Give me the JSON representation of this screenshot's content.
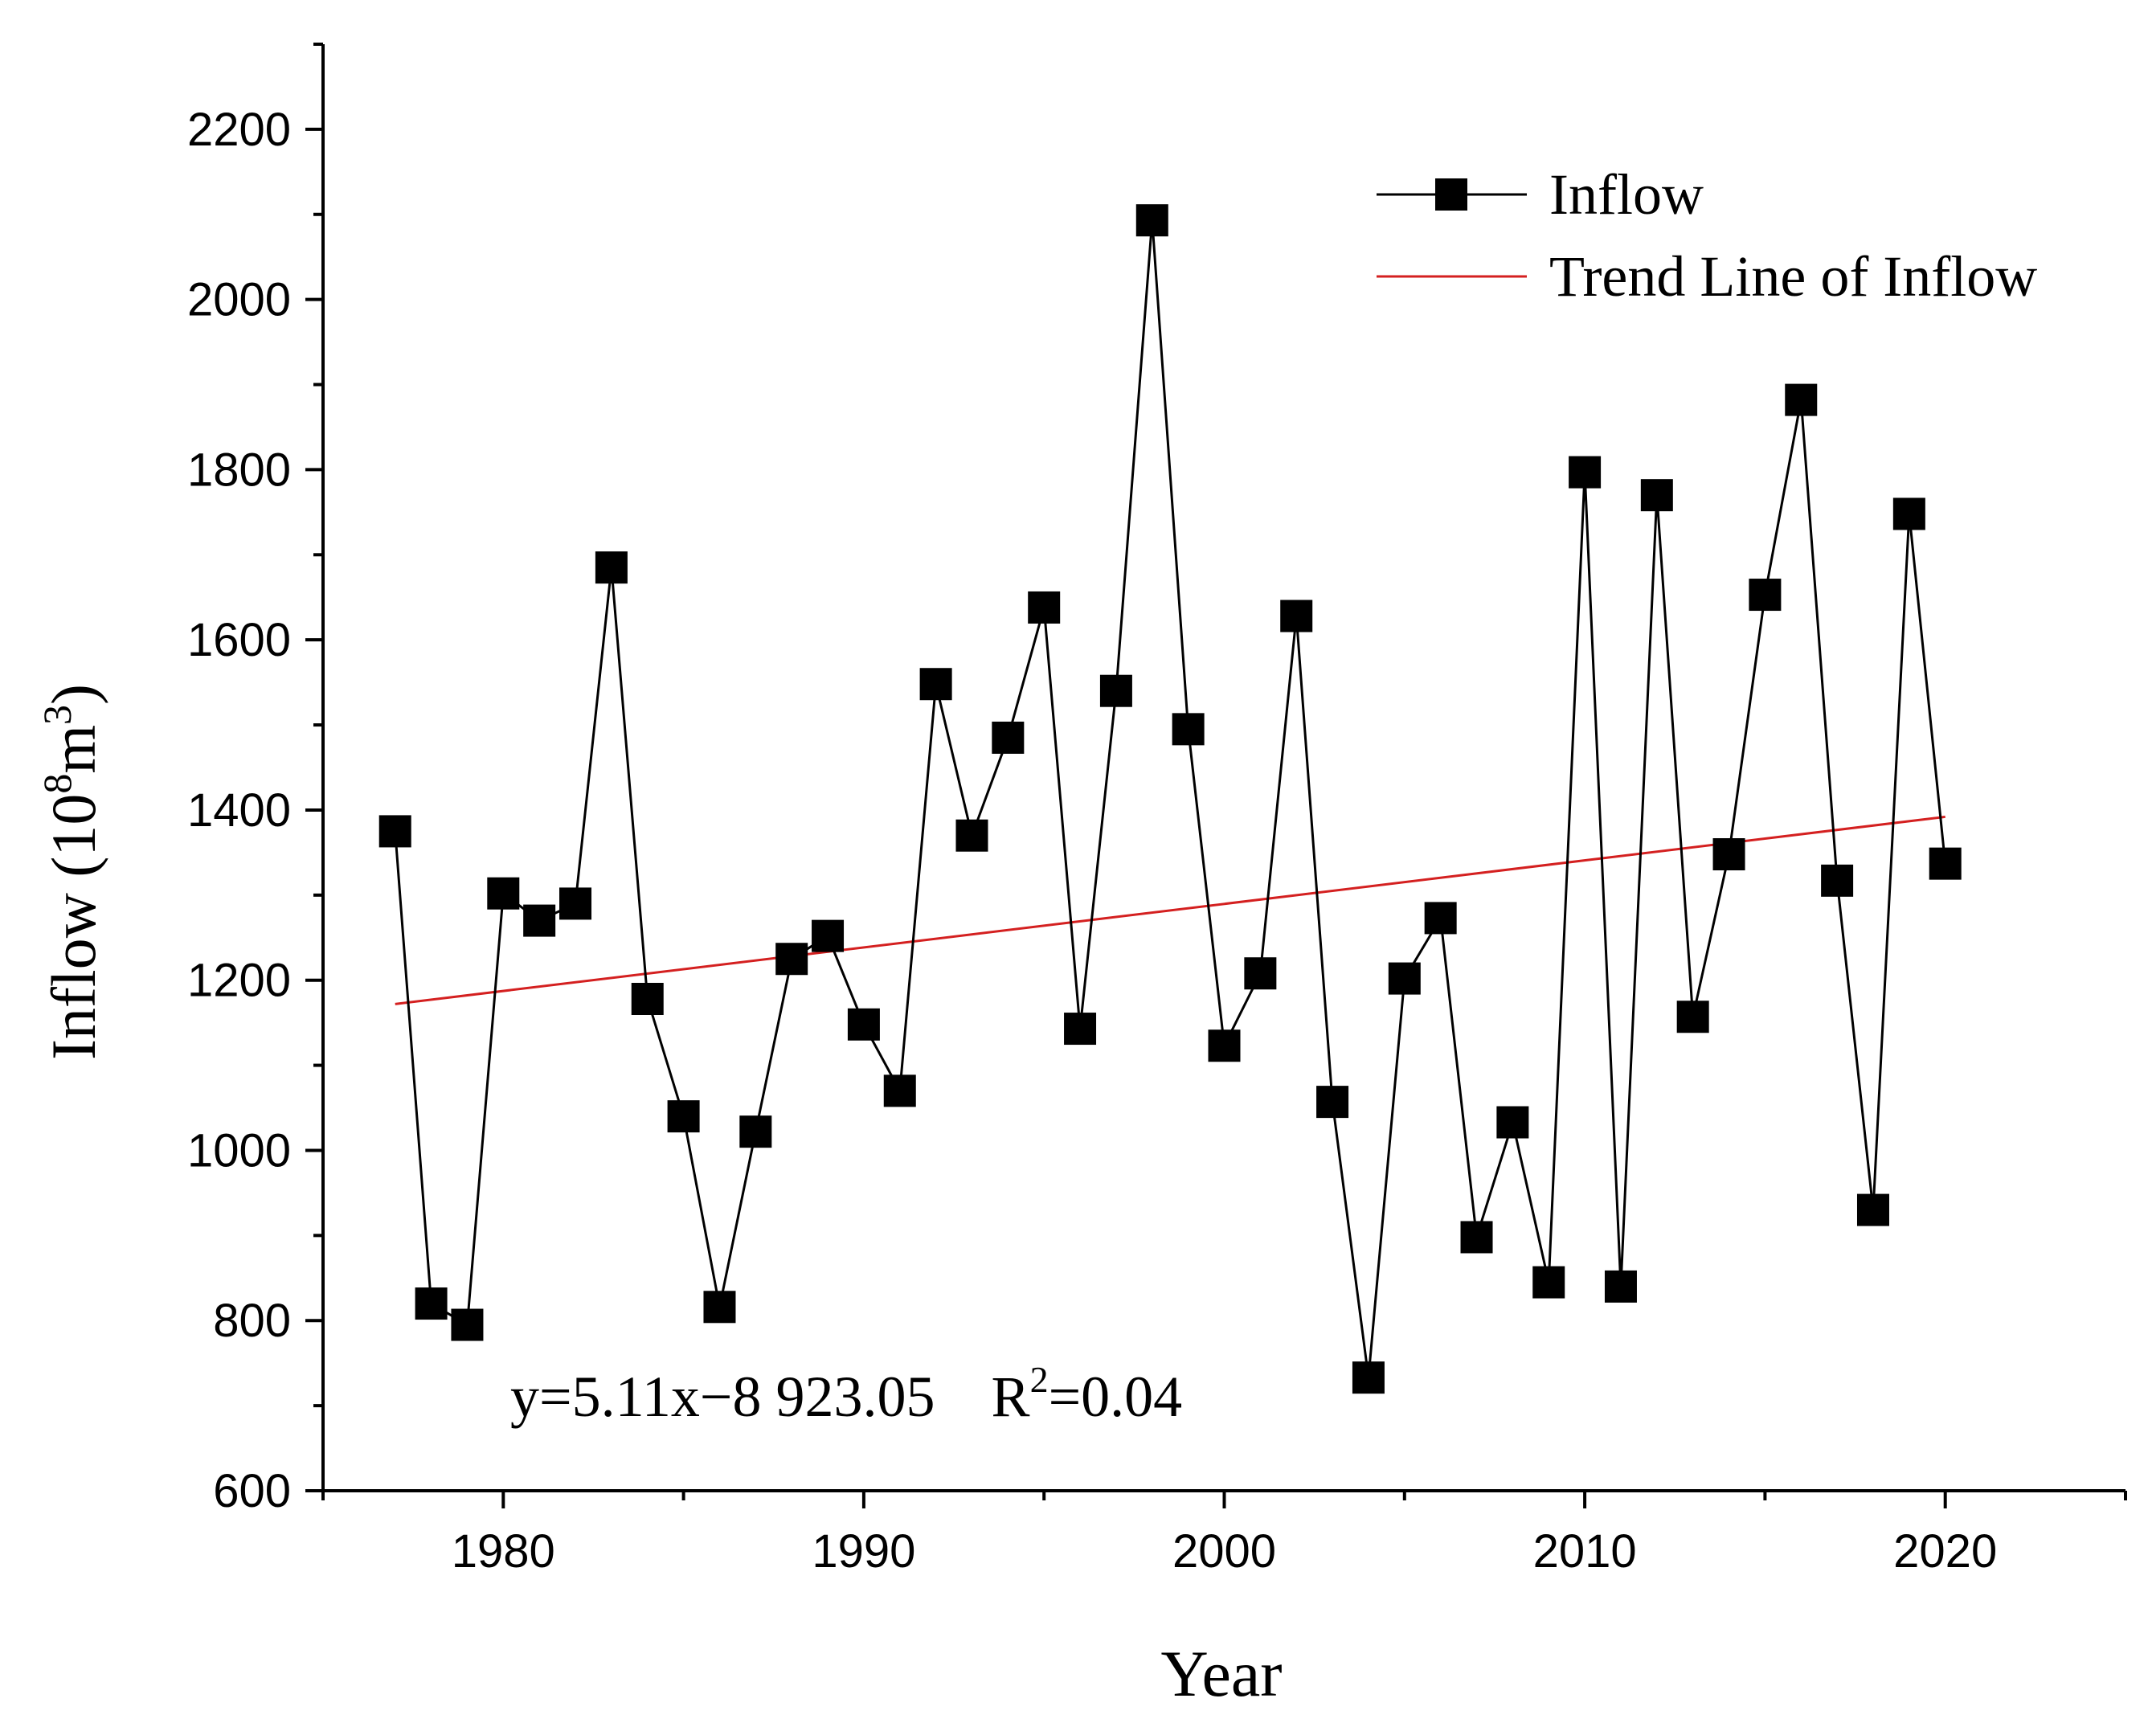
{
  "chart_data": {
    "type": "line",
    "xlabel": "Year",
    "ylabel": {
      "main": "Inflow (10",
      "sup1": "8",
      "mid": "m",
      "sup2": "3",
      "end": ")"
    },
    "xlim": [
      1975,
      2025
    ],
    "ylim": [
      600,
      2300
    ],
    "xticks": [
      1980,
      1990,
      2000,
      2010,
      2020
    ],
    "yticks": [
      600,
      800,
      1000,
      1200,
      1400,
      1600,
      1800,
      2000,
      2200
    ],
    "x": [
      1977,
      1978,
      1979,
      1980,
      1981,
      1982,
      1983,
      1984,
      1985,
      1986,
      1987,
      1988,
      1989,
      1990,
      1991,
      1992,
      1993,
      1994,
      1995,
      1996,
      1997,
      1998,
      1999,
      2000,
      2001,
      2002,
      2003,
      2004,
      2005,
      2006,
      2007,
      2008,
      2009,
      2010,
      2011,
      2012,
      2013,
      2014,
      2015,
      2016,
      2017,
      2018,
      2019,
      2020
    ],
    "series": [
      {
        "name": "Inflow",
        "color": "#000000",
        "marker": "square",
        "values": [
          1375,
          820,
          795,
          1302,
          1270,
          1290,
          1685,
          1178,
          1040,
          816,
          1022,
          1225,
          1252,
          1148,
          1070,
          1548,
          1370,
          1485,
          1638,
          1143,
          1540,
          2093,
          1495,
          1123,
          1208,
          1628,
          1057,
          733,
          1202,
          1273,
          898,
          1033,
          845,
          1797,
          840,
          1770,
          1157,
          1348,
          1653,
          1882,
          1317,
          930,
          1748,
          1337
        ]
      },
      {
        "name": "Trend Line of Inflow",
        "color": "#d42020",
        "type": "trend",
        "x": [
          1977,
          2020
        ],
        "values": [
          1172,
          1392
        ]
      }
    ],
    "legend_position": "top-right",
    "annotation": {
      "equation": "y=5.11x−8 923.05",
      "r_prefix": "R",
      "r_sup": "2",
      "r_value": "=0.04"
    }
  }
}
